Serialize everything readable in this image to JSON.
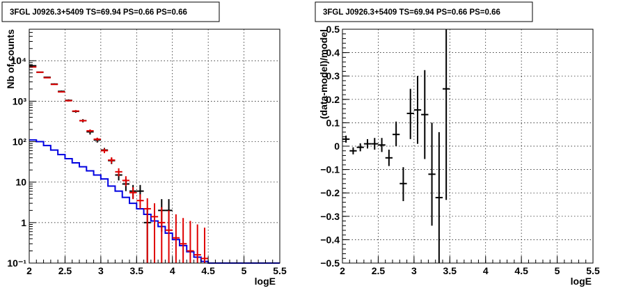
{
  "colors": {
    "data": "#000000",
    "model": "#e00000",
    "component": "#0000e0",
    "grid": "#000000"
  },
  "chart_data": [
    {
      "type": "step-histogram",
      "title": "3FGL J0926.3+5409 TS=69.94 PS=0.66 PS=0.66",
      "xlabel": "logE",
      "ylabel": "Nb of counts",
      "yscale": "log",
      "xlim": [
        2,
        5.5
      ],
      "ylim": [
        0.1,
        60000
      ],
      "grid": true,
      "xticks": [
        2,
        2.5,
        3,
        3.5,
        4,
        4.5,
        5,
        5.5
      ],
      "xtick_labels": [
        "2",
        "2.5",
        "3",
        "3.5",
        "4",
        "4.5",
        "5",
        "5.5"
      ],
      "yticks": [
        0.1,
        1,
        10,
        100,
        1000,
        10000
      ],
      "ytick_labels": [
        "10⁻¹",
        "1",
        "10",
        "10²",
        "10³",
        "10⁴"
      ],
      "bin_width": 0.1,
      "data_series": {
        "name": "",
        "points": [
          {
            "x": 2.05,
            "y": 7500,
            "lo": 7300,
            "hi": 7700
          },
          {
            "x": 2.15,
            "y": 5200,
            "lo": 5050,
            "hi": 5350
          },
          {
            "x": 2.25,
            "y": 3900,
            "lo": 3780,
            "hi": 4020
          },
          {
            "x": 2.35,
            "y": 2650,
            "lo": 2550,
            "hi": 2750
          },
          {
            "x": 2.45,
            "y": 1750,
            "lo": 1670,
            "hi": 1830
          },
          {
            "x": 2.55,
            "y": 1050,
            "lo": 990,
            "hi": 1110
          },
          {
            "x": 2.65,
            "y": 560,
            "lo": 520,
            "hi": 600
          },
          {
            "x": 2.75,
            "y": 330,
            "lo": 300,
            "hi": 360
          },
          {
            "x": 2.85,
            "y": 175,
            "lo": 150,
            "hi": 200
          },
          {
            "x": 2.95,
            "y": 110,
            "lo": 95,
            "hi": 125
          },
          {
            "x": 3.05,
            "y": 62,
            "lo": 54,
            "hi": 70
          },
          {
            "x": 3.15,
            "y": 34,
            "lo": 28,
            "hi": 40
          },
          {
            "x": 3.25,
            "y": 15,
            "lo": 11,
            "hi": 19
          },
          {
            "x": 3.35,
            "y": 9,
            "lo": 6,
            "hi": 12
          },
          {
            "x": 3.45,
            "y": 6,
            "lo": 4,
            "hi": 8.5
          },
          {
            "x": 3.55,
            "y": 6,
            "lo": 4,
            "hi": 8.5
          },
          {
            "x": 3.65,
            "y": 1,
            "lo": 0.1,
            "hi": 2.3
          },
          {
            "x": 3.85,
            "y": 2,
            "lo": 0.6,
            "hi": 3.8
          },
          {
            "x": 3.95,
            "y": 2,
            "lo": 0.6,
            "hi": 3.8
          }
        ]
      },
      "model_series": {
        "name": "",
        "points": [
          {
            "x": 2.05,
            "y": 7000,
            "lo": 6800,
            "hi": 7200
          },
          {
            "x": 2.15,
            "y": 5200,
            "lo": 5100,
            "hi": 5300
          },
          {
            "x": 2.25,
            "y": 3800,
            "lo": 3700,
            "hi": 3900
          },
          {
            "x": 2.35,
            "y": 2600,
            "lo": 2550,
            "hi": 2650
          },
          {
            "x": 2.45,
            "y": 1700,
            "lo": 1650,
            "hi": 1750
          },
          {
            "x": 2.55,
            "y": 1030,
            "lo": 980,
            "hi": 1080
          },
          {
            "x": 2.65,
            "y": 570,
            "lo": 540,
            "hi": 600
          },
          {
            "x": 2.75,
            "y": 330,
            "lo": 310,
            "hi": 350
          },
          {
            "x": 2.85,
            "y": 185,
            "lo": 170,
            "hi": 200
          },
          {
            "x": 2.95,
            "y": 115,
            "lo": 105,
            "hi": 125
          },
          {
            "x": 3.05,
            "y": 60,
            "lo": 52,
            "hi": 68
          },
          {
            "x": 3.15,
            "y": 35,
            "lo": 29,
            "hi": 41
          },
          {
            "x": 3.25,
            "y": 18,
            "lo": 14,
            "hi": 22
          },
          {
            "x": 3.35,
            "y": 11,
            "lo": 8,
            "hi": 14
          },
          {
            "x": 3.45,
            "y": 5.5,
            "lo": 3.8,
            "hi": 7.5
          },
          {
            "x": 3.55,
            "y": 3.5,
            "lo": 2.2,
            "hi": 5
          },
          {
            "x": 3.65,
            "y": 2.2,
            "lo": 0.1,
            "hi": 4
          },
          {
            "x": 3.75,
            "y": 1.4,
            "lo": 0.1,
            "hi": 3
          },
          {
            "x": 3.85,
            "y": 1,
            "lo": 0.1,
            "hi": 2.4
          },
          {
            "x": 3.95,
            "y": 0.65,
            "lo": 0.1,
            "hi": 2
          },
          {
            "x": 4.05,
            "y": 0.42,
            "lo": 0.1,
            "hi": 1.6
          },
          {
            "x": 4.15,
            "y": 0.3,
            "lo": 0.1,
            "hi": 1.3
          },
          {
            "x": 4.25,
            "y": 0.2,
            "lo": 0.1,
            "hi": 1.1
          },
          {
            "x": 4.35,
            "y": 0.16,
            "lo": 0.1,
            "hi": 0.9
          },
          {
            "x": 4.45,
            "y": 0.13,
            "lo": 0.1,
            "hi": 0.75
          }
        ]
      },
      "component_series": {
        "name": "",
        "bin_edges": [
          2.0,
          2.1,
          2.2,
          2.3,
          2.4,
          2.5,
          2.6,
          2.7,
          2.8,
          2.9,
          3.0,
          3.1,
          3.2,
          3.3,
          3.4,
          3.5,
          3.6,
          3.7,
          3.8,
          3.9,
          4.0,
          4.1,
          4.2,
          4.3,
          4.4,
          4.5,
          4.6,
          4.7,
          4.8,
          4.9,
          5.0,
          5.1,
          5.2,
          5.3,
          5.4,
          5.5
        ],
        "values": [
          110,
          100,
          80,
          62,
          48,
          38,
          30,
          24,
          19,
          15,
          12,
          8,
          6,
          4.2,
          3,
          2.2,
          1.6,
          1.1,
          0.8,
          0.55,
          0.38,
          0.27,
          0.19,
          0.14,
          0.11,
          0.1,
          0.1,
          0.1,
          0.1,
          0.1,
          0.1,
          0.1,
          0.1,
          0.1,
          0.1
        ]
      }
    },
    {
      "type": "scatter-errorbar",
      "title": "3FGL J0926.3+5409 TS=69.94 PS=0.66 PS=0.66",
      "xlabel": "logE",
      "ylabel": "(data-model)/model",
      "xlim": [
        2,
        5.5
      ],
      "ylim": [
        -0.5,
        0.5
      ],
      "grid": true,
      "xticks": [
        2,
        2.5,
        3,
        3.5,
        4,
        4.5,
        5,
        5.5
      ],
      "xtick_labels": [
        "2",
        "2.5",
        "3",
        "3.5",
        "4",
        "4.5",
        "5",
        "5.5"
      ],
      "yticks": [
        -0.5,
        -0.4,
        -0.3,
        -0.2,
        -0.1,
        0,
        0.1,
        0.2,
        0.3,
        0.4,
        0.5
      ],
      "ytick_labels": [
        "−0.5",
        "−0.4",
        "−0.3",
        "−0.2",
        "−0.1",
        "0",
        "0.1",
        "0.2",
        "0.3",
        "0.4",
        "0.5"
      ],
      "bin_width": 0.1,
      "series": [
        {
          "name": "",
          "points": [
            {
              "x": 2.05,
              "y": 0.03,
              "lo": 0.015,
              "hi": 0.045
            },
            {
              "x": 2.15,
              "y": -0.02,
              "lo": -0.035,
              "hi": -0.005
            },
            {
              "x": 2.25,
              "y": -0.005,
              "lo": -0.022,
              "hi": 0.012
            },
            {
              "x": 2.35,
              "y": 0.01,
              "lo": -0.01,
              "hi": 0.03
            },
            {
              "x": 2.45,
              "y": 0.01,
              "lo": -0.015,
              "hi": 0.035
            },
            {
              "x": 2.55,
              "y": 0.005,
              "lo": -0.025,
              "hi": 0.035
            },
            {
              "x": 2.65,
              "y": -0.05,
              "lo": -0.085,
              "hi": -0.015
            },
            {
              "x": 2.75,
              "y": 0.05,
              "lo": 0.0,
              "hi": 0.105
            },
            {
              "x": 2.85,
              "y": -0.16,
              "lo": -0.235,
              "hi": -0.09
            },
            {
              "x": 2.95,
              "y": 0.14,
              "lo": 0.03,
              "hi": 0.245
            },
            {
              "x": 3.05,
              "y": 0.155,
              "lo": 0.01,
              "hi": 0.3
            },
            {
              "x": 3.15,
              "y": 0.135,
              "lo": -0.055,
              "hi": 0.325
            },
            {
              "x": 3.25,
              "y": -0.12,
              "lo": -0.34,
              "hi": 0.1
            },
            {
              "x": 3.35,
              "y": -0.22,
              "lo": -0.5,
              "hi": 0.06
            },
            {
              "x": 3.45,
              "y": 0.245,
              "lo": -0.23,
              "hi": 0.5
            }
          ]
        }
      ]
    }
  ]
}
